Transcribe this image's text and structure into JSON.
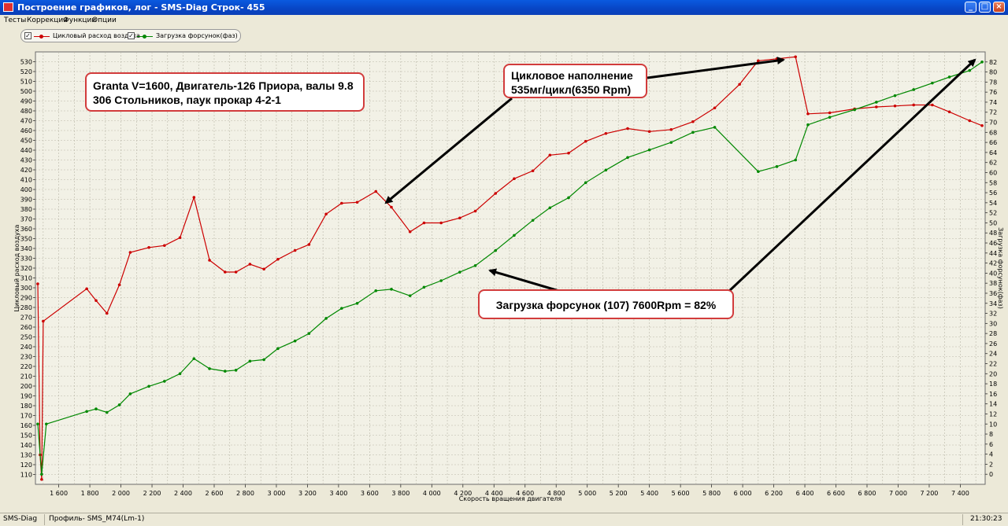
{
  "window": {
    "title": "Построение графиков, лог - SMS-Diag Строк- 455",
    "min_label": "_",
    "max_label": "□",
    "close_label": "×"
  },
  "menu": [
    "Тесты",
    "Коррекции",
    "Функции",
    "Опции"
  ],
  "legend": {
    "series1": "Цикловый расход воздуха",
    "series2": "Загрузка форсунок(фаз)",
    "check": "✓"
  },
  "annotations": {
    "info_line1": "Granta V=1600, Двигатель-126 Приора, валы 9.8",
    "info_line2": "306 Стольников,  паук прокар 4-2-1",
    "fill_line1": "Цикловое наполнение",
    "fill_line2": "535мг/цикл(6350 Rpm)",
    "inj_text": "Загрузка форсунок (107)    7600Rpm = 82%"
  },
  "statusbar": {
    "app": "SMS-Diag",
    "profile": "Профиль- SMS_M74(Lm-1)",
    "time": "21:30:23"
  },
  "colors": {
    "series1": "#cc0000",
    "series2": "#008800",
    "plot_bg": "#f2f1e6",
    "grid": "#b9b7a8",
    "annot_border": "#d23c3c"
  },
  "chart_data": {
    "type": "line",
    "xlabel": "Скорость вращения двигателя",
    "ylabel_left": "Цикловый расход воздуха",
    "ylabel_right": "Загрузка форсунок(фаз)",
    "xlim": [
      1450,
      7560
    ],
    "ylim_left": [
      100,
      540
    ],
    "ylim_right": [
      -2,
      84
    ],
    "x_ticks": [
      1600,
      1800,
      2000,
      2200,
      2400,
      2600,
      2800,
      3000,
      3200,
      3400,
      3600,
      3800,
      4000,
      4200,
      4400,
      4600,
      4800,
      5000,
      5200,
      5400,
      5600,
      5800,
      6000,
      6200,
      6400,
      6600,
      6800,
      7000,
      7200,
      7400
    ],
    "x_tick_labels": [
      "1 600",
      "1 800",
      "2 000",
      "2 200",
      "2 400",
      "2 600",
      "2 800",
      "3 000",
      "3 200",
      "3 400",
      "3 600",
      "3 800",
      "4 000",
      "4 200",
      "4 400",
      "4 600",
      "4 800",
      "5 000",
      "5 200",
      "5 400",
      "5 600",
      "5 800",
      "6 000",
      "6 200",
      "6 400",
      "6 600",
      "6 800",
      "7 000",
      "7 200",
      "7 400"
    ],
    "y_left_ticks": [
      110,
      120,
      130,
      140,
      150,
      160,
      170,
      180,
      190,
      200,
      210,
      220,
      230,
      240,
      250,
      260,
      270,
      280,
      290,
      300,
      310,
      320,
      330,
      340,
      350,
      360,
      370,
      380,
      390,
      400,
      410,
      420,
      430,
      440,
      450,
      460,
      470,
      480,
      490,
      500,
      510,
      520,
      530
    ],
    "y_right_ticks": [
      0,
      2,
      4,
      6,
      8,
      10,
      12,
      14,
      16,
      18,
      20,
      22,
      24,
      26,
      28,
      30,
      32,
      34,
      36,
      38,
      40,
      42,
      44,
      46,
      48,
      50,
      52,
      54,
      56,
      58,
      60,
      62,
      64,
      66,
      68,
      70,
      72,
      74,
      76,
      78,
      80,
      82
    ],
    "grid": true,
    "legend_position": "top-left",
    "series": [
      {
        "name": "Цикловый расход воздуха",
        "axis": "left",
        "points": [
          [
            1465,
            304
          ],
          [
            1480,
            130
          ],
          [
            1490,
            105
          ],
          [
            1500,
            266
          ],
          [
            1780,
            299
          ],
          [
            1840,
            287
          ],
          [
            1910,
            274
          ],
          [
            1990,
            303
          ],
          [
            2060,
            336
          ],
          [
            2180,
            341
          ],
          [
            2280,
            343
          ],
          [
            2380,
            351
          ],
          [
            2470,
            392
          ],
          [
            2570,
            328
          ],
          [
            2670,
            316
          ],
          [
            2740,
            316
          ],
          [
            2830,
            324
          ],
          [
            2920,
            319
          ],
          [
            3010,
            329
          ],
          [
            3120,
            338
          ],
          [
            3210,
            344
          ],
          [
            3320,
            375
          ],
          [
            3420,
            386
          ],
          [
            3520,
            387
          ],
          [
            3640,
            398
          ],
          [
            3740,
            382
          ],
          [
            3860,
            357
          ],
          [
            3950,
            366
          ],
          [
            4060,
            366
          ],
          [
            4180,
            371
          ],
          [
            4280,
            378
          ],
          [
            4410,
            396
          ],
          [
            4530,
            411
          ],
          [
            4650,
            419
          ],
          [
            4760,
            435
          ],
          [
            4880,
            437
          ],
          [
            4990,
            449
          ],
          [
            5120,
            457
          ],
          [
            5260,
            462
          ],
          [
            5400,
            459
          ],
          [
            5540,
            461
          ],
          [
            5680,
            469
          ],
          [
            5820,
            483
          ],
          [
            5980,
            507
          ],
          [
            6100,
            531
          ],
          [
            6220,
            533
          ],
          [
            6340,
            535
          ],
          [
            6420,
            477
          ],
          [
            6560,
            478
          ],
          [
            6720,
            482
          ],
          [
            6860,
            484
          ],
          [
            6980,
            485
          ],
          [
            7100,
            486
          ],
          [
            7220,
            486
          ],
          [
            7330,
            479
          ],
          [
            7460,
            470
          ],
          [
            7540,
            465
          ]
        ]
      },
      {
        "name": "Загрузка форсунок(фаз)",
        "axis": "right",
        "points": [
          [
            1465,
            10
          ],
          [
            1490,
            0
          ],
          [
            1520,
            10
          ],
          [
            1780,
            12.5
          ],
          [
            1840,
            13
          ],
          [
            1910,
            12.3
          ],
          [
            1990,
            13.8
          ],
          [
            2060,
            16
          ],
          [
            2180,
            17.5
          ],
          [
            2280,
            18.5
          ],
          [
            2380,
            20
          ],
          [
            2470,
            23
          ],
          [
            2570,
            21
          ],
          [
            2670,
            20.5
          ],
          [
            2740,
            20.7
          ],
          [
            2830,
            22.5
          ],
          [
            2920,
            22.8
          ],
          [
            3010,
            25
          ],
          [
            3120,
            26.5
          ],
          [
            3210,
            28
          ],
          [
            3320,
            31
          ],
          [
            3420,
            33
          ],
          [
            3520,
            34
          ],
          [
            3640,
            36.5
          ],
          [
            3740,
            36.8
          ],
          [
            3860,
            35.5
          ],
          [
            3950,
            37.2
          ],
          [
            4060,
            38.5
          ],
          [
            4180,
            40.2
          ],
          [
            4280,
            41.5
          ],
          [
            4410,
            44.5
          ],
          [
            4530,
            47.5
          ],
          [
            4650,
            50.5
          ],
          [
            4760,
            53
          ],
          [
            4880,
            55
          ],
          [
            4990,
            58
          ],
          [
            5120,
            60.5
          ],
          [
            5260,
            63
          ],
          [
            5400,
            64.5
          ],
          [
            5540,
            66
          ],
          [
            5680,
            68
          ],
          [
            5820,
            69
          ],
          [
            6100,
            60.2
          ],
          [
            6220,
            61.2
          ],
          [
            6340,
            62.5
          ],
          [
            6420,
            69.5
          ],
          [
            6560,
            71
          ],
          [
            6720,
            72.5
          ],
          [
            6860,
            74
          ],
          [
            6980,
            75.3
          ],
          [
            7100,
            76.5
          ],
          [
            7220,
            77.8
          ],
          [
            7330,
            79
          ],
          [
            7460,
            80.3
          ],
          [
            7540,
            82
          ]
        ]
      }
    ]
  }
}
